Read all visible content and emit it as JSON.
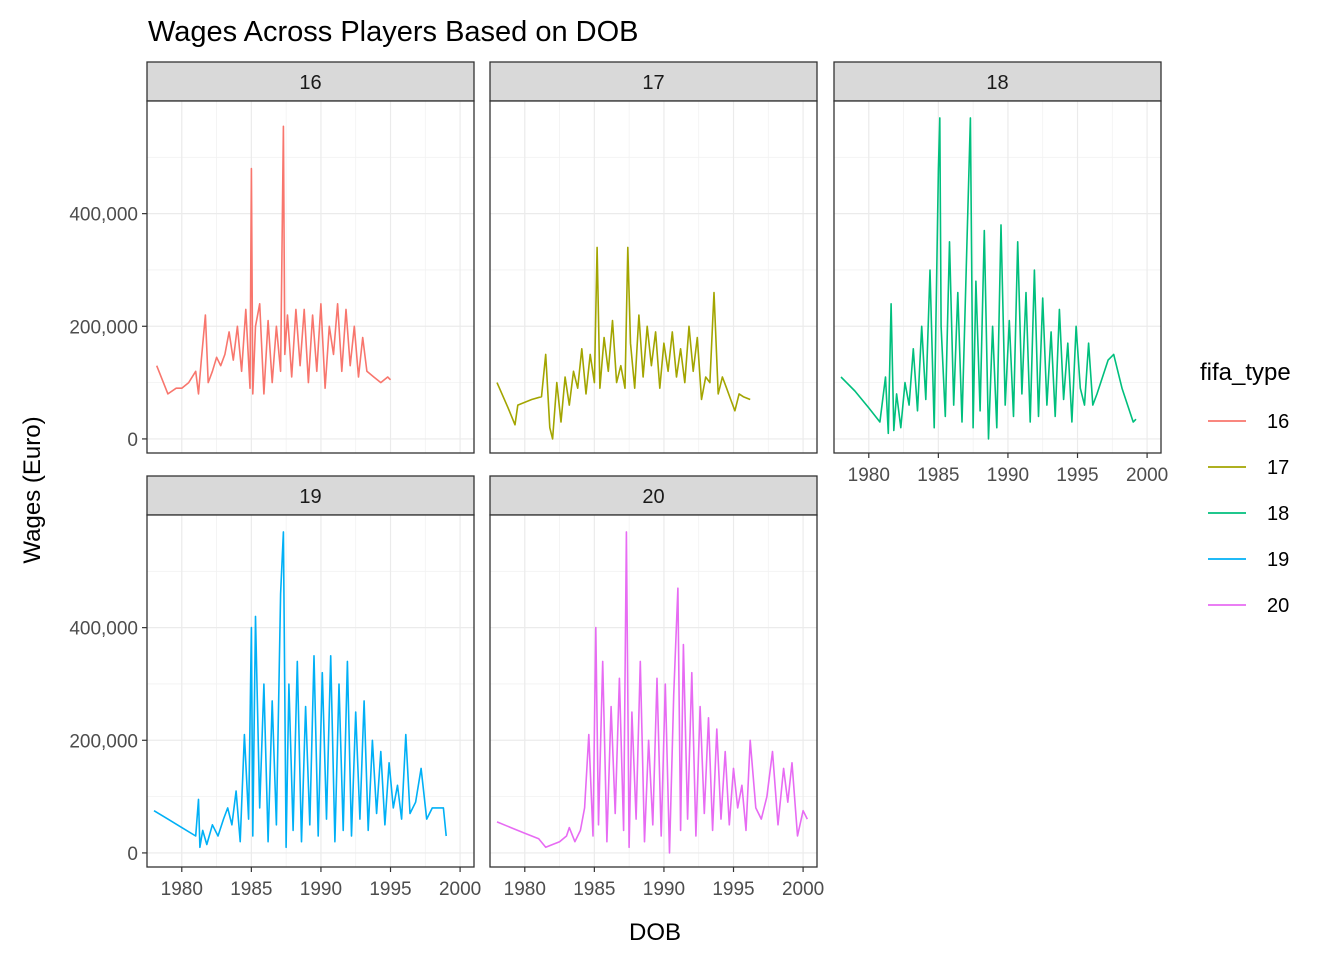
{
  "chart_data": {
    "type": "line",
    "title": "Wages Across Players Based on DOB",
    "xlabel": "DOB",
    "ylabel": "Wages (Euro)",
    "xlim": [
      1977.5,
      2001
    ],
    "ylim": [
      -25000,
      600000
    ],
    "x_ticks": [
      1980,
      1985,
      1990,
      1995,
      2000
    ],
    "y_ticks": [
      0,
      200000,
      400000
    ],
    "y_tick_labels": [
      "0",
      "200,000",
      "400,000"
    ],
    "grid": true,
    "facet_by": "fifa_type",
    "legend": {
      "title": "fifa_type",
      "placement": "right"
    },
    "series": [
      {
        "name": "16",
        "color": "#F8766D",
        "x": [
          1978.2,
          1979.0,
          1979.6,
          1980.0,
          1980.5,
          1981.0,
          1981.2,
          1981.4,
          1981.7,
          1981.9,
          1982.2,
          1982.5,
          1982.8,
          1983.1,
          1983.4,
          1983.7,
          1984.0,
          1984.3,
          1984.6,
          1984.9,
          1985.0,
          1985.1,
          1985.3,
          1985.6,
          1985.9,
          1986.2,
          1986.5,
          1986.8,
          1987.1,
          1987.3,
          1987.4,
          1987.6,
          1987.9,
          1988.2,
          1988.5,
          1988.8,
          1989.1,
          1989.4,
          1989.7,
          1990.0,
          1990.3,
          1990.6,
          1990.9,
          1991.2,
          1991.5,
          1991.8,
          1992.1,
          1992.4,
          1992.7,
          1993.0,
          1993.3,
          1993.8,
          1994.3,
          1994.8,
          1995.0
        ],
        "y": [
          130000,
          80000,
          90000,
          90000,
          100000,
          120000,
          80000,
          140000,
          220000,
          100000,
          120000,
          145000,
          130000,
          150000,
          190000,
          140000,
          200000,
          120000,
          230000,
          90000,
          480000,
          80000,
          200000,
          240000,
          80000,
          210000,
          100000,
          200000,
          120000,
          555000,
          150000,
          220000,
          110000,
          230000,
          130000,
          230000,
          100000,
          220000,
          120000,
          240000,
          90000,
          200000,
          150000,
          240000,
          120000,
          230000,
          130000,
          200000,
          110000,
          180000,
          120000,
          110000,
          100000,
          110000,
          105000
        ]
      },
      {
        "name": "17",
        "color": "#A3A500",
        "x": [
          1978.0,
          1978.8,
          1979.3,
          1979.5,
          1980.5,
          1981.2,
          1981.5,
          1981.8,
          1982.0,
          1982.3,
          1982.6,
          1982.9,
          1983.2,
          1983.5,
          1983.8,
          1984.1,
          1984.4,
          1984.7,
          1985.0,
          1985.2,
          1985.4,
          1985.7,
          1986.0,
          1986.3,
          1986.6,
          1986.9,
          1987.2,
          1987.4,
          1987.6,
          1987.9,
          1988.2,
          1988.5,
          1988.8,
          1989.1,
          1989.4,
          1989.7,
          1990.0,
          1990.3,
          1990.6,
          1990.9,
          1991.2,
          1991.5,
          1991.8,
          1992.1,
          1992.4,
          1992.7,
          1993.0,
          1993.3,
          1993.6,
          1993.9,
          1994.2,
          1994.5,
          1994.8,
          1995.1,
          1995.4,
          1995.7,
          1996.2
        ],
        "y": [
          100000,
          55000,
          25000,
          60000,
          70000,
          75000,
          150000,
          20000,
          0,
          100000,
          30000,
          110000,
          60000,
          120000,
          90000,
          160000,
          80000,
          150000,
          100000,
          340000,
          90000,
          180000,
          120000,
          210000,
          100000,
          130000,
          90000,
          340000,
          170000,
          90000,
          220000,
          110000,
          200000,
          130000,
          190000,
          90000,
          170000,
          120000,
          190000,
          110000,
          160000,
          100000,
          200000,
          120000,
          180000,
          70000,
          110000,
          100000,
          260000,
          80000,
          110000,
          90000,
          70000,
          50000,
          80000,
          75000,
          70000
        ]
      },
      {
        "name": "18",
        "color": "#00BF7D",
        "x": [
          1978.0,
          1979.0,
          1980.0,
          1980.8,
          1981.2,
          1981.4,
          1981.6,
          1981.8,
          1982.0,
          1982.3,
          1982.6,
          1982.9,
          1983.2,
          1983.5,
          1983.8,
          1984.1,
          1984.4,
          1984.7,
          1985.0,
          1985.1,
          1985.2,
          1985.5,
          1985.8,
          1986.1,
          1986.4,
          1986.7,
          1987.0,
          1987.3,
          1987.5,
          1987.7,
          1988.0,
          1988.3,
          1988.6,
          1988.9,
          1989.2,
          1989.5,
          1989.8,
          1990.1,
          1990.4,
          1990.7,
          1991.0,
          1991.3,
          1991.6,
          1991.9,
          1992.2,
          1992.5,
          1992.8,
          1993.1,
          1993.4,
          1993.7,
          1994.0,
          1994.3,
          1994.6,
          1994.9,
          1995.2,
          1995.5,
          1995.8,
          1996.1,
          1996.4,
          1997.2,
          1997.6,
          1998.2,
          1999.0,
          1999.2
        ],
        "y": [
          110000,
          85000,
          55000,
          30000,
          110000,
          10000,
          240000,
          15000,
          80000,
          20000,
          100000,
          60000,
          160000,
          50000,
          200000,
          70000,
          300000,
          20000,
          480000,
          570000,
          200000,
          40000,
          350000,
          60000,
          260000,
          30000,
          300000,
          570000,
          20000,
          280000,
          50000,
          370000,
          0,
          200000,
          20000,
          380000,
          60000,
          210000,
          40000,
          350000,
          80000,
          260000,
          30000,
          300000,
          40000,
          250000,
          60000,
          190000,
          40000,
          230000,
          70000,
          170000,
          30000,
          200000,
          90000,
          60000,
          170000,
          60000,
          80000,
          140000,
          150000,
          90000,
          30000,
          35000
        ]
      },
      {
        "name": "19",
        "color": "#00B0F6",
        "x": [
          1978.0,
          1979.0,
          1980.0,
          1981.0,
          1981.2,
          1981.3,
          1981.5,
          1981.8,
          1982.2,
          1982.6,
          1983.0,
          1983.3,
          1983.6,
          1983.9,
          1984.2,
          1984.5,
          1984.8,
          1985.0,
          1985.1,
          1985.3,
          1985.6,
          1985.9,
          1986.2,
          1986.5,
          1986.8,
          1987.1,
          1987.3,
          1987.5,
          1987.7,
          1988.0,
          1988.3,
          1988.6,
          1988.9,
          1989.2,
          1989.5,
          1989.8,
          1990.1,
          1990.4,
          1990.7,
          1991.0,
          1991.3,
          1991.6,
          1991.9,
          1992.2,
          1992.5,
          1992.8,
          1993.1,
          1993.4,
          1993.7,
          1994.0,
          1994.3,
          1994.6,
          1994.9,
          1995.2,
          1995.5,
          1995.8,
          1996.1,
          1996.4,
          1996.8,
          1997.2,
          1997.6,
          1998.0,
          1998.8,
          1999.0
        ],
        "y": [
          75000,
          60000,
          45000,
          30000,
          95000,
          10000,
          40000,
          15000,
          50000,
          30000,
          60000,
          80000,
          50000,
          110000,
          20000,
          210000,
          60000,
          400000,
          30000,
          420000,
          80000,
          300000,
          20000,
          270000,
          50000,
          460000,
          570000,
          10000,
          300000,
          40000,
          340000,
          20000,
          260000,
          50000,
          350000,
          30000,
          320000,
          60000,
          350000,
          20000,
          300000,
          40000,
          340000,
          30000,
          250000,
          60000,
          270000,
          40000,
          200000,
          70000,
          180000,
          50000,
          160000,
          80000,
          120000,
          60000,
          210000,
          70000,
          90000,
          150000,
          60000,
          80000,
          80000,
          30000
        ]
      },
      {
        "name": "20",
        "color": "#E76BF3",
        "x": [
          1978.0,
          1979.0,
          1980.0,
          1981.0,
          1981.5,
          1982.0,
          1982.5,
          1983.0,
          1983.2,
          1983.6,
          1984.0,
          1984.3,
          1984.6,
          1984.9,
          1985.1,
          1985.3,
          1985.6,
          1985.9,
          1986.2,
          1986.5,
          1986.8,
          1987.1,
          1987.3,
          1987.5,
          1987.7,
          1988.0,
          1988.3,
          1988.6,
          1988.9,
          1989.2,
          1989.5,
          1989.8,
          1990.1,
          1990.4,
          1990.7,
          1991.0,
          1991.2,
          1991.4,
          1991.7,
          1992.0,
          1992.3,
          1992.6,
          1992.9,
          1993.2,
          1993.5,
          1993.8,
          1994.1,
          1994.4,
          1994.7,
          1995.0,
          1995.3,
          1995.6,
          1995.9,
          1996.2,
          1996.6,
          1997.0,
          1997.4,
          1997.8,
          1998.2,
          1998.6,
          1998.9,
          1999.2,
          1999.6,
          2000.0,
          2000.3
        ],
        "y": [
          55000,
          45000,
          35000,
          25000,
          10000,
          15000,
          20000,
          30000,
          45000,
          20000,
          40000,
          80000,
          210000,
          30000,
          400000,
          50000,
          340000,
          20000,
          260000,
          70000,
          310000,
          40000,
          570000,
          10000,
          250000,
          60000,
          340000,
          20000,
          200000,
          50000,
          310000,
          30000,
          300000,
          0,
          280000,
          470000,
          40000,
          370000,
          60000,
          320000,
          30000,
          260000,
          70000,
          240000,
          40000,
          220000,
          60000,
          180000,
          50000,
          150000,
          80000,
          120000,
          40000,
          200000,
          80000,
          60000,
          100000,
          180000,
          50000,
          150000,
          90000,
          160000,
          30000,
          75000,
          60000
        ]
      }
    ]
  }
}
